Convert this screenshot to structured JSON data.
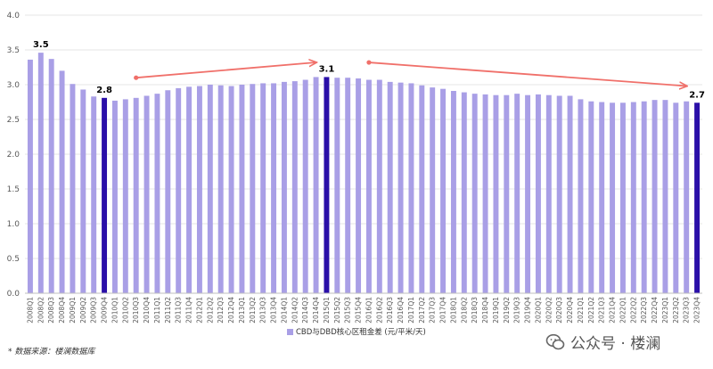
{
  "chart_data": {
    "type": "bar",
    "categories": [
      "2008Q1",
      "2008Q2",
      "2008Q3",
      "2008Q4",
      "2009Q1",
      "2009Q2",
      "2009Q3",
      "2009Q4",
      "2010Q1",
      "2010Q2",
      "2010Q3",
      "2010Q4",
      "2011Q1",
      "2011Q2",
      "2011Q3",
      "2011Q4",
      "2012Q1",
      "2012Q2",
      "2012Q3",
      "2012Q4",
      "2013Q1",
      "2013Q2",
      "2013Q3",
      "2013Q4",
      "2014Q1",
      "2014Q2",
      "2014Q3",
      "2014Q4",
      "2015Q1",
      "2015Q2",
      "2015Q3",
      "2015Q4",
      "2016Q1",
      "2016Q2",
      "2016Q3",
      "2016Q4",
      "2017Q1",
      "2017Q2",
      "2017Q3",
      "2017Q4",
      "2018Q1",
      "2018Q2",
      "2018Q3",
      "2018Q4",
      "2019Q1",
      "2019Q2",
      "2019Q3",
      "2019Q4",
      "2020Q1",
      "2020Q2",
      "2020Q3",
      "2020Q4",
      "2021Q1",
      "2021Q2",
      "2021Q3",
      "2021Q4",
      "2022Q1",
      "2022Q2",
      "2022Q3",
      "2022Q4",
      "2023Q1",
      "2023Q2",
      "2023Q3",
      "2023Q4"
    ],
    "series": [
      {
        "name": "CBD与DBD核心区租金差 (元/平米/天)",
        "values": [
          3.36,
          3.46,
          3.37,
          3.2,
          3.01,
          2.93,
          2.83,
          2.81,
          2.77,
          2.79,
          2.81,
          2.84,
          2.87,
          2.92,
          2.95,
          2.97,
          2.98,
          3.0,
          2.99,
          2.98,
          3.0,
          3.01,
          3.02,
          3.02,
          3.04,
          3.05,
          3.07,
          3.11,
          3.11,
          3.1,
          3.1,
          3.09,
          3.07,
          3.07,
          3.04,
          3.03,
          3.02,
          2.99,
          2.96,
          2.94,
          2.91,
          2.89,
          2.87,
          2.86,
          2.85,
          2.85,
          2.87,
          2.85,
          2.86,
          2.85,
          2.84,
          2.84,
          2.79,
          2.76,
          2.75,
          2.74,
          2.74,
          2.75,
          2.76,
          2.78,
          2.78,
          2.74,
          2.76,
          2.74
        ]
      }
    ],
    "highlight_indices": [
      7,
      28,
      63
    ],
    "data_labels": [
      {
        "index": 1,
        "text": "3.5"
      },
      {
        "index": 7,
        "text": "2.8"
      },
      {
        "index": 28,
        "text": "3.1"
      },
      {
        "index": 63,
        "text": "2.7"
      }
    ],
    "trend_arrows": [
      {
        "from_index": 10,
        "from_value": 3.1,
        "to_index": 27,
        "to_value": 3.32
      },
      {
        "from_index": 32,
        "from_value": 3.32,
        "to_index": 62,
        "to_value": 2.98
      }
    ],
    "yticks": [
      "0.0",
      "0.5",
      "1.0",
      "1.5",
      "2.0",
      "2.5",
      "3.0",
      "3.5",
      "4.0"
    ],
    "ylim": [
      0,
      4
    ],
    "grid": true,
    "legend_position": "bottom-center",
    "colors": {
      "bar": "#a99fe6",
      "highlight": "#2a0fa8",
      "arrow": "#f0706a",
      "grid": "#e4e4e4"
    }
  },
  "footer": {
    "source": "* 数据来源：楼澜数据库",
    "watermark": "公众号 · 楼澜"
  }
}
